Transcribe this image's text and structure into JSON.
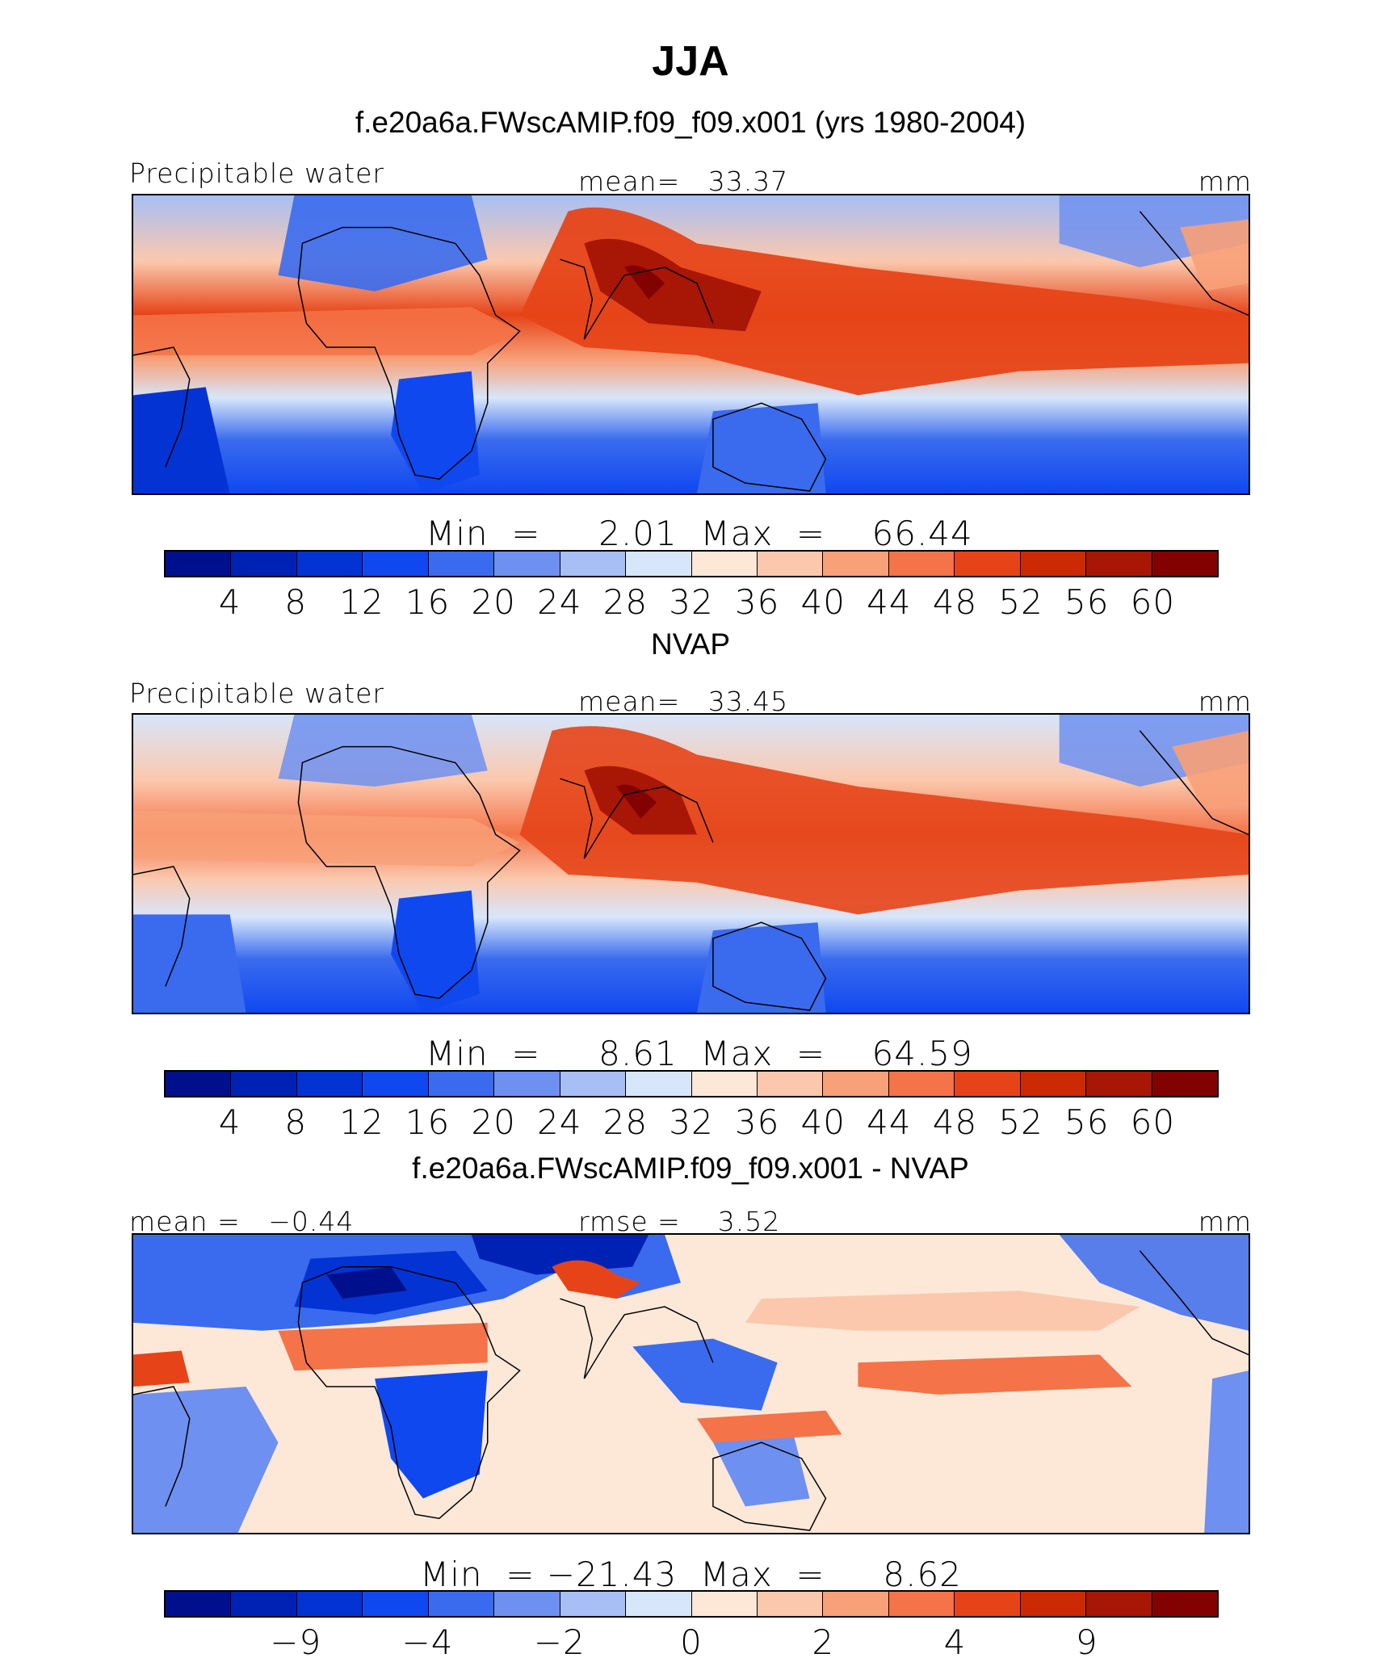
{
  "title": "JJA",
  "colors": {
    "scale": [
      "#00108c",
      "#0022b4",
      "#0433d4",
      "#1048f0",
      "#3a6bee",
      "#6e90f0",
      "#a7bff4",
      "#d7e6fb",
      "#fde8d8",
      "#fbc8ad",
      "#f8a078",
      "#f47348",
      "#e64418",
      "#cc2a04",
      "#a81606",
      "#820202"
    ]
  },
  "panels": [
    {
      "subtitle": "f.e20a6a.FWscAMIP.f09_f09.x001 (yrs 1980-2004)",
      "left_label": "Precipitable water",
      "center_label": "mean=   33.37",
      "right_label": "mm",
      "minmax_label": "Min  =     2.01  Max  =    66.44",
      "tick_labels": [
        "4",
        "8",
        "12",
        "16",
        "20",
        "24",
        "28",
        "32",
        "36",
        "40",
        "44",
        "48",
        "52",
        "56",
        "60"
      ]
    },
    {
      "subtitle": "NVAP",
      "left_label": "Precipitable water",
      "center_label": "mean=   33.45",
      "right_label": "mm",
      "minmax_label": "Min  =     8.61  Max  =    64.59",
      "tick_labels": [
        "4",
        "8",
        "12",
        "16",
        "20",
        "24",
        "28",
        "32",
        "36",
        "40",
        "44",
        "48",
        "52",
        "56",
        "60"
      ]
    },
    {
      "subtitle": "f.e20a6a.FWscAMIP.f09_f09.x001 - NVAP",
      "left_label": "mean =   −0.44",
      "center_label": "rmse =    3.52",
      "right_label": "mm",
      "minmax_label": "Min  = −21.43  Max  =     8.62",
      "tick_labels": [
        "−9",
        "−4",
        "−2",
        "0",
        "2",
        "4",
        "9"
      ]
    }
  ],
  "chart_data": [
    {
      "type": "heatmap",
      "title": "f.e20a6a.FWscAMIP.f09_f09.x001 (yrs 1980-2004)",
      "variable": "Precipitable water",
      "units": "mm",
      "mean": 33.37,
      "min": 2.01,
      "max": 66.44,
      "contour_levels": [
        4,
        8,
        12,
        16,
        20,
        24,
        28,
        32,
        36,
        40,
        44,
        48,
        52,
        56,
        60
      ]
    },
    {
      "type": "heatmap",
      "title": "NVAP",
      "variable": "Precipitable water",
      "units": "mm",
      "mean": 33.45,
      "min": 8.61,
      "max": 64.59,
      "contour_levels": [
        4,
        8,
        12,
        16,
        20,
        24,
        28,
        32,
        36,
        40,
        44,
        48,
        52,
        56,
        60
      ]
    },
    {
      "type": "heatmap",
      "title": "f.e20a6a.FWscAMIP.f09_f09.x001 - NVAP",
      "units": "mm",
      "mean": -0.44,
      "rmse": 3.52,
      "min": -21.43,
      "max": 8.62,
      "contour_levels": [
        -9,
        -4,
        -2,
        0,
        2,
        4,
        9
      ]
    }
  ]
}
